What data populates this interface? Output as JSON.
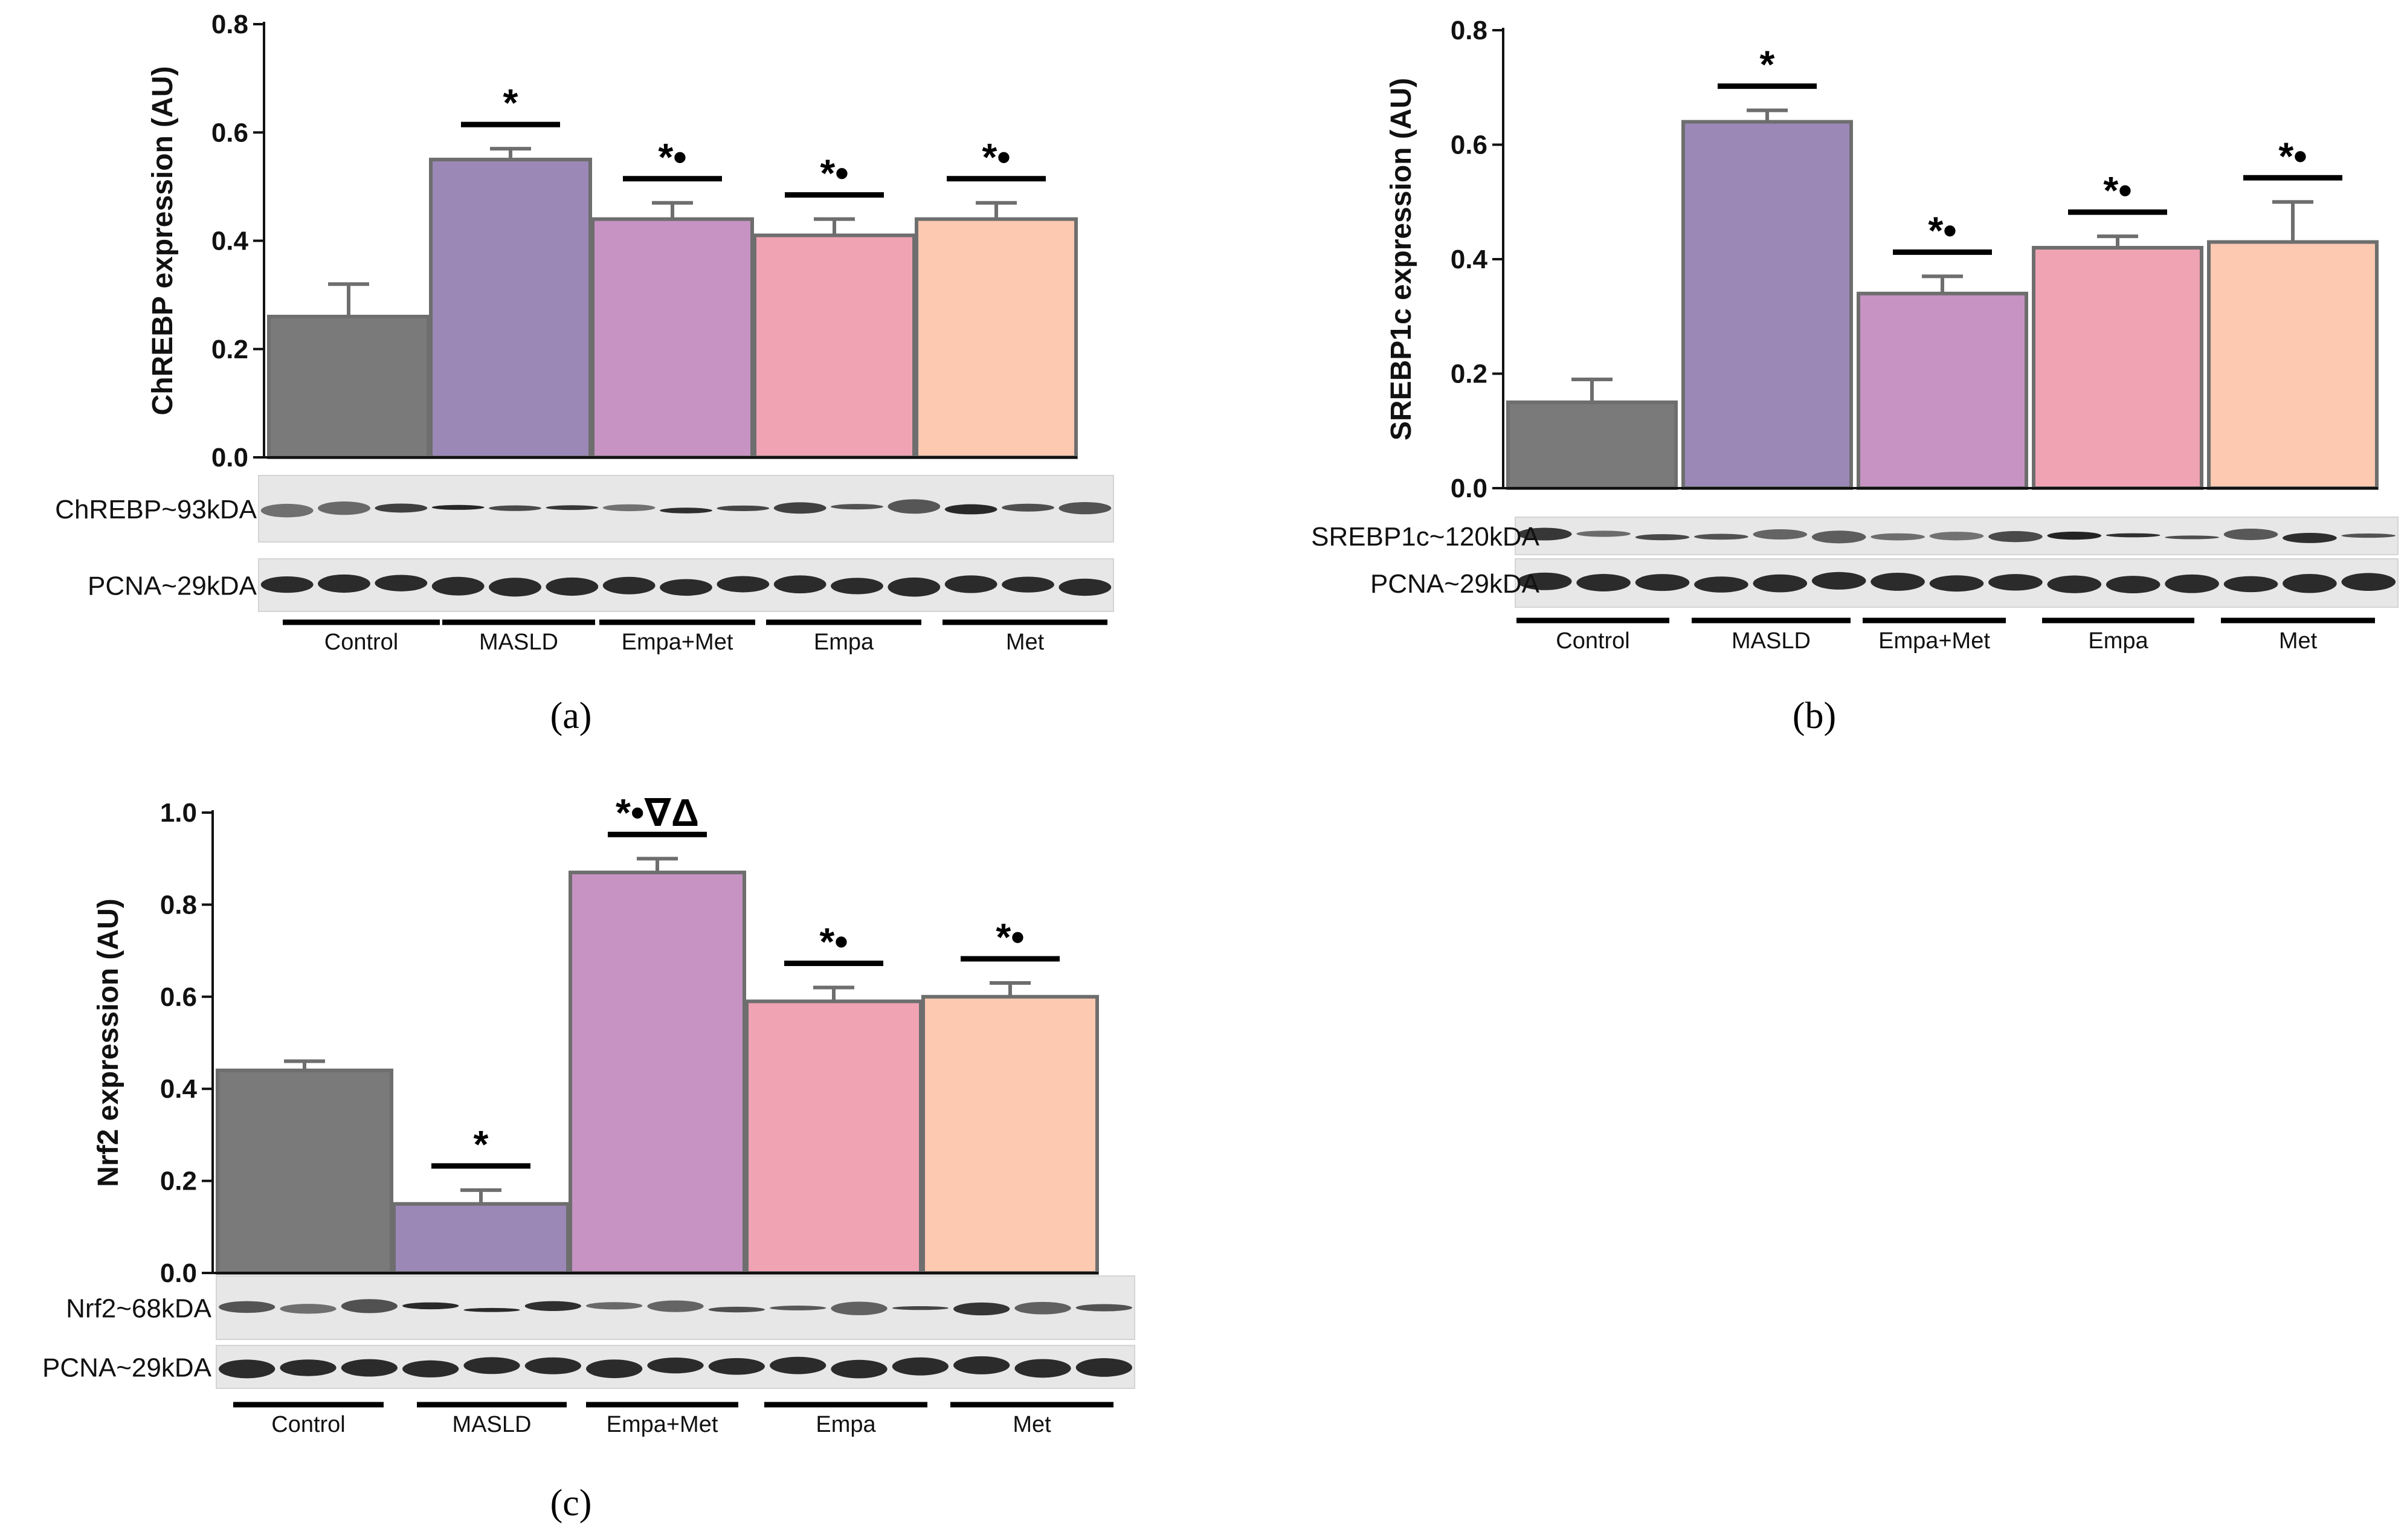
{
  "colors": {
    "Control": "#7a7a7a",
    "MASLD": "#9b88b7",
    "Empa+Met": "#c693c3",
    "Empa": "#efa3b3",
    "Met": "#fdc9b0",
    "bar_edge": "#6e6e6e",
    "error_bar": "#6e6e6e"
  },
  "chart_data": [
    {
      "type": "bar",
      "panel_label": "(a)",
      "ylabel": "ChREBP expression (AU)",
      "ylim": [
        0,
        0.8
      ],
      "yticks": [
        "0.0",
        "0.2",
        "0.4",
        "0.6",
        "0.8"
      ],
      "categories": [
        "Control",
        "MASLD",
        "Empa+Met",
        "Empa",
        "Met"
      ],
      "values": [
        0.26,
        0.55,
        0.44,
        0.41,
        0.44
      ],
      "errors": [
        0.06,
        0.02,
        0.03,
        0.03,
        0.03
      ],
      "significance": [
        "",
        "*",
        "*•",
        "*•",
        "*•"
      ],
      "blot_labels": [
        "ChREBP~93kDA",
        "PCNA~29kDA"
      ],
      "group_labels": [
        "Control",
        "MASLD",
        "Empa+Met",
        "Empa",
        "Met"
      ]
    },
    {
      "type": "bar",
      "panel_label": "(b)",
      "ylabel": "SREBP1c expression (AU)",
      "ylim": [
        0,
        0.8
      ],
      "yticks": [
        "0.0",
        "0.2",
        "0.4",
        "0.6",
        "0.8"
      ],
      "categories": [
        "Control",
        "MASLD",
        "Empa+Met",
        "Empa",
        "Met"
      ],
      "values": [
        0.15,
        0.64,
        0.34,
        0.42,
        0.43
      ],
      "errors": [
        0.04,
        0.02,
        0.03,
        0.02,
        0.07
      ],
      "significance": [
        "",
        "*",
        "*•",
        "*•",
        "*•"
      ],
      "blot_labels": [
        "SREBP1c~120kDA",
        "PCNA~29kDA"
      ],
      "group_labels": [
        "Control",
        "MASLD",
        "Empa+Met",
        "Empa",
        "Met"
      ]
    },
    {
      "type": "bar",
      "panel_label": "(c)",
      "ylabel": "Nrf2 expression (AU)",
      "ylim": [
        0,
        1.0
      ],
      "yticks": [
        "0.0",
        "0.2",
        "0.4",
        "0.6",
        "0.8",
        "1.0"
      ],
      "categories": [
        "Control",
        "MASLD",
        "Empa+Met",
        "Empa",
        "Met"
      ],
      "values": [
        0.44,
        0.15,
        0.87,
        0.59,
        0.6
      ],
      "errors": [
        0.02,
        0.03,
        0.03,
        0.03,
        0.03
      ],
      "significance": [
        "",
        "*",
        "*•∇Δ",
        "*•",
        "*•"
      ],
      "blot_labels": [
        "Nrf2~68kDA",
        "PCNA~29kDA"
      ],
      "group_labels": [
        "Control",
        "MASLD",
        "Empa+Met",
        "Empa",
        "Met"
      ]
    }
  ]
}
